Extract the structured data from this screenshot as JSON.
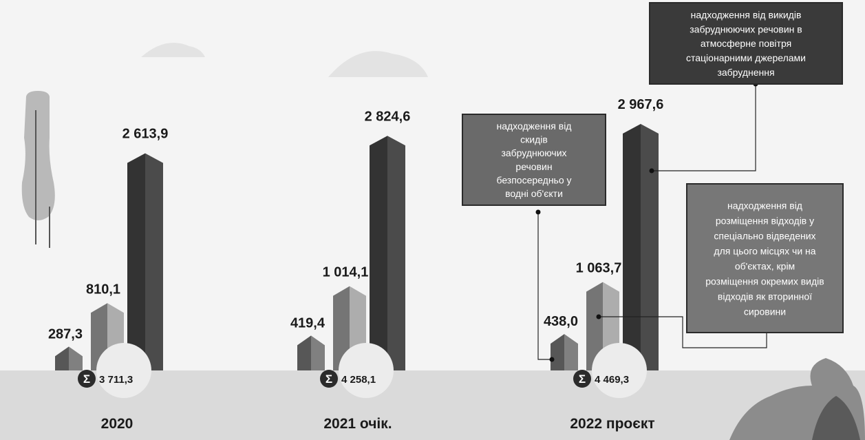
{
  "chart_data": {
    "type": "bar",
    "categories": [
      "2020",
      "2021 очік.",
      "2022 проєкт"
    ],
    "series": [
      {
        "name": "надходження від скидів забруднюючих речовин безпосередньо у водні об'єкти",
        "values": [
          287.3,
          419.4,
          438.0
        ],
        "labels": [
          "287,3",
          "419,4",
          "438,0"
        ],
        "color": "#666666"
      },
      {
        "name": "надходження від розміщення відходів у спеціально відведених для цього місцях чи на об'єктах, крім розміщення окремих видів відходів як вторинної сировини",
        "values": [
          810.1,
          1014.1,
          1063.7
        ],
        "labels": [
          "810,1",
          "1 014,1",
          "1 063,7"
        ],
        "color": "#8a8a8a"
      },
      {
        "name": "надходження від викидів забруднюючих речовин в атмосферне повітря стаціонарними джерелами забруднення",
        "values": [
          2613.9,
          2824.6,
          2967.6
        ],
        "labels": [
          "2 613,9",
          "2 824,6",
          "2 967,6"
        ],
        "color": "#3c3c3c"
      }
    ],
    "totals": [
      {
        "symbol": "Σ",
        "value": 3711.3,
        "label": "3 711,3"
      },
      {
        "symbol": "Σ",
        "value": 4258.1,
        "label": "4 258,1"
      },
      {
        "symbol": "Σ",
        "value": 4469.3,
        "label": "4 469,3"
      }
    ],
    "legend_placement": "callouts",
    "grid": false
  }
}
